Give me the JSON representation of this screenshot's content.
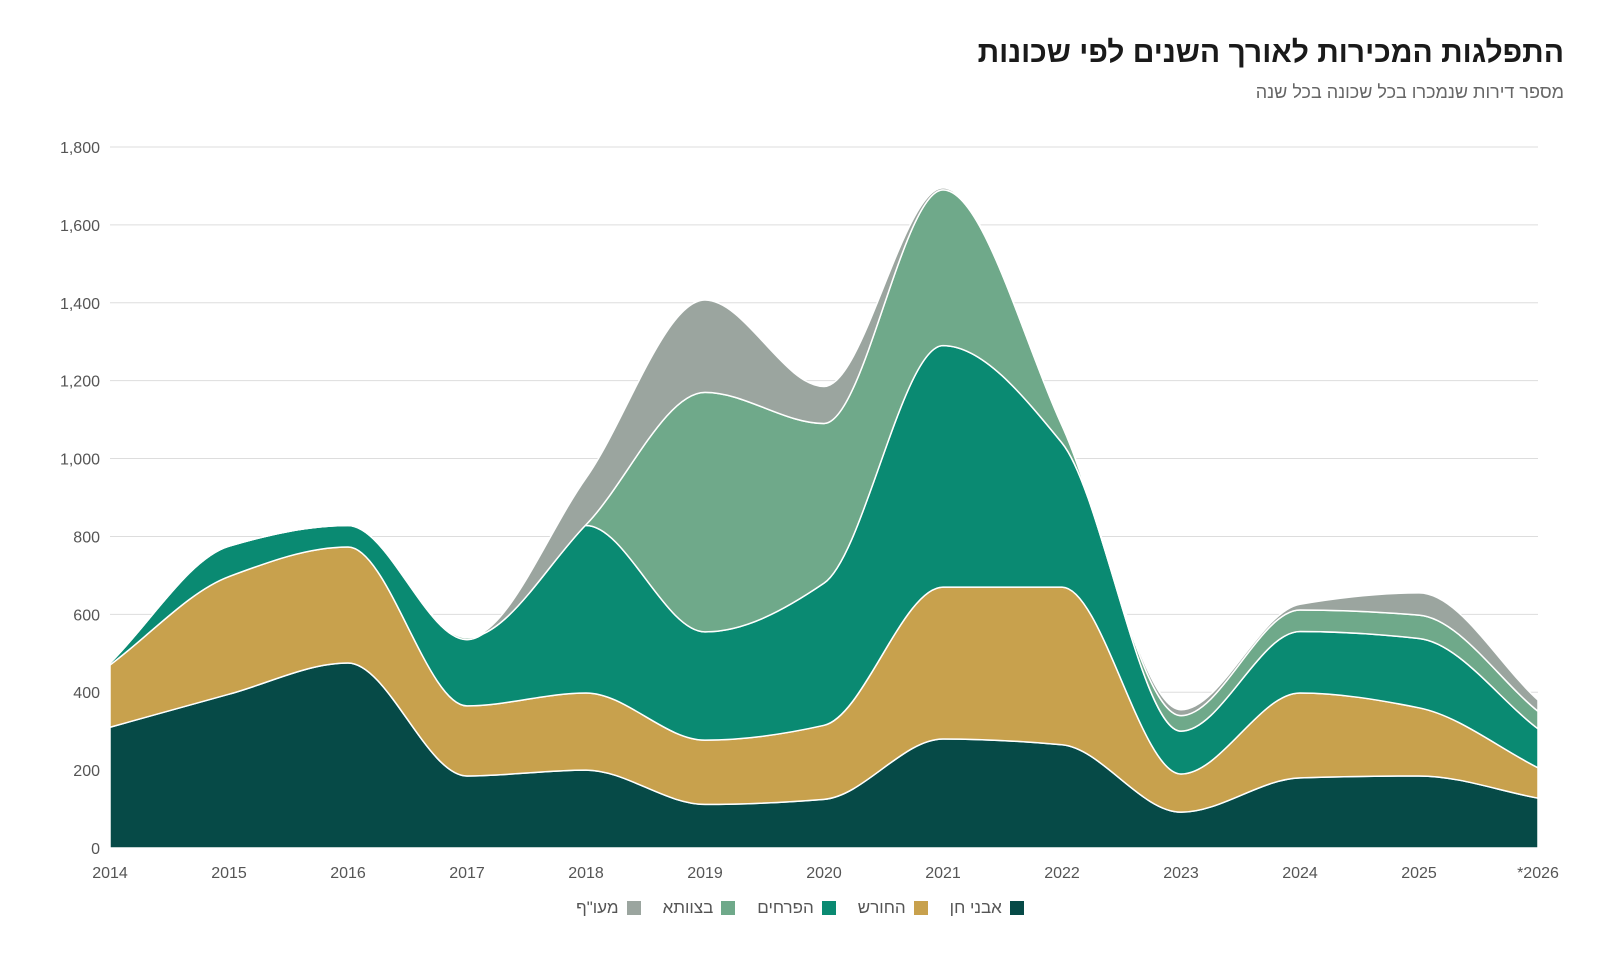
{
  "title": "התפלגות המכירות לאורך השנים לפי שכונות",
  "subtitle": "מספר דירות שנמכרו בכל שכונה בכל שנה",
  "chart_data": {
    "type": "area",
    "stacked": true,
    "x": [
      "2014",
      "2015",
      "2016",
      "2017",
      "2018",
      "2019",
      "2020",
      "2021",
      "2022",
      "2023",
      "2024",
      "2025",
      "*2026"
    ],
    "ylim": [
      0,
      1800
    ],
    "yticks": [
      "0",
      "200",
      "400",
      "600",
      "800",
      "1,000",
      "1,200",
      "1,400",
      "1,600",
      "1,800"
    ],
    "grid": true,
    "legend_position": "bottom",
    "series": [
      {
        "name": "אבני חן",
        "color": "#064a47",
        "values": [
          310,
          395,
          475,
          185,
          200,
          112,
          125,
          280,
          265,
          92,
          180,
          185,
          128
        ]
      },
      {
        "name": "החורש",
        "color": "#c8a14d",
        "values": [
          160,
          302,
          298,
          180,
          198,
          165,
          190,
          390,
          405,
          98,
          218,
          175,
          78
        ]
      },
      {
        "name": "הפרחים",
        "color": "#0a8a72",
        "values": [
          5,
          78,
          55,
          170,
          430,
          278,
          365,
          620,
          370,
          110,
          158,
          178,
          100
        ]
      },
      {
        "name": "בצוותא",
        "color": "#6fa98a",
        "values": [
          0,
          0,
          0,
          5,
          2,
          615,
          410,
          400,
          45,
          40,
          55,
          60,
          45
        ]
      },
      {
        "name": "מעו\"ף",
        "color": "#9ba59f",
        "values": [
          0,
          0,
          0,
          0,
          120,
          237,
          95,
          5,
          0,
          15,
          15,
          57,
          29
        ]
      }
    ]
  }
}
